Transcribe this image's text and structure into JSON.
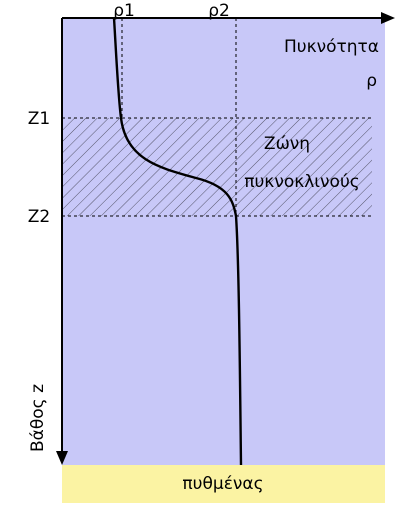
{
  "labels": {
    "rho1": "ρ1",
    "rho2": "ρ2",
    "density_title": "Πυκνότητα",
    "density_symbol": "ρ",
    "z1": "Z1",
    "z2": "Z2",
    "zone_line1": "Ζώνη",
    "zone_line2": "πυκνοκλινούς",
    "depth_axis": "Βάθος z",
    "seabed": "πυθμένας"
  },
  "colors": {
    "water": "#c8c8f8",
    "seabed": "#fbf3a3",
    "line": "#000000"
  }
}
